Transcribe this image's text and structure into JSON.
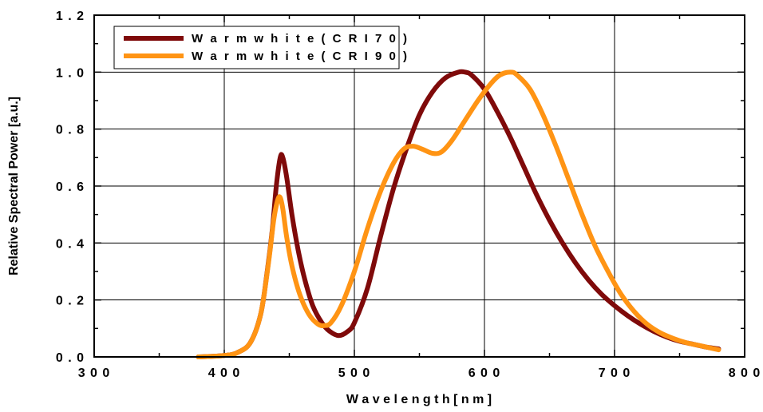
{
  "chart_data": {
    "type": "line",
    "xlabel": "W a v e l e n g t h   [ n m ]",
    "ylabel": "Relative Spectral Power [a.u.]",
    "xlim": [
      300,
      800
    ],
    "ylim": [
      0,
      1.2
    ],
    "x_ticks": [
      300,
      400,
      500,
      600,
      700,
      800
    ],
    "x_tick_labels": [
      "3 0 0",
      "4 0 0",
      "5 0 0",
      "6 0 0",
      "7 0 0",
      "8 0 0"
    ],
    "y_ticks": [
      0,
      0.2,
      0.4,
      0.6,
      0.8,
      1.0,
      1.2
    ],
    "y_tick_labels": [
      "0 . 0",
      "0 . 2",
      "0 . 4",
      "0 . 6",
      "0 . 8",
      "1 . 0",
      "1 . 2"
    ],
    "grid": true,
    "legend_position": "top-left",
    "series": [
      {
        "name": "W a r m  w h i t e  ( C R I  7 0 )",
        "color": "#7f0a0a",
        "points": [
          [
            380,
            0.0
          ],
          [
            400,
            0.005
          ],
          [
            410,
            0.015
          ],
          [
            420,
            0.05
          ],
          [
            428,
            0.15
          ],
          [
            433,
            0.3
          ],
          [
            437,
            0.45
          ],
          [
            440,
            0.6
          ],
          [
            443,
            0.7
          ],
          [
            445,
            0.7
          ],
          [
            448,
            0.63
          ],
          [
            452,
            0.5
          ],
          [
            457,
            0.37
          ],
          [
            462,
            0.27
          ],
          [
            468,
            0.18
          ],
          [
            475,
            0.12
          ],
          [
            481,
            0.09
          ],
          [
            488,
            0.075
          ],
          [
            495,
            0.09
          ],
          [
            500,
            0.12
          ],
          [
            510,
            0.24
          ],
          [
            520,
            0.42
          ],
          [
            530,
            0.59
          ],
          [
            540,
            0.73
          ],
          [
            550,
            0.85
          ],
          [
            560,
            0.93
          ],
          [
            570,
            0.98
          ],
          [
            580,
            1.0
          ],
          [
            585,
            1.0
          ],
          [
            590,
            0.99
          ],
          [
            600,
            0.94
          ],
          [
            610,
            0.86
          ],
          [
            620,
            0.77
          ],
          [
            630,
            0.67
          ],
          [
            640,
            0.57
          ],
          [
            650,
            0.48
          ],
          [
            660,
            0.4
          ],
          [
            670,
            0.33
          ],
          [
            680,
            0.27
          ],
          [
            690,
            0.22
          ],
          [
            700,
            0.18
          ],
          [
            710,
            0.145
          ],
          [
            720,
            0.115
          ],
          [
            730,
            0.09
          ],
          [
            740,
            0.07
          ],
          [
            750,
            0.055
          ],
          [
            760,
            0.045
          ],
          [
            770,
            0.035
          ],
          [
            780,
            0.028
          ]
        ]
      },
      {
        "name": "W a r m  w h i t e  ( C R I  9 0 )",
        "color": "#ff9414",
        "points": [
          [
            380,
            0.0
          ],
          [
            400,
            0.005
          ],
          [
            410,
            0.015
          ],
          [
            420,
            0.05
          ],
          [
            428,
            0.15
          ],
          [
            434,
            0.33
          ],
          [
            438,
            0.48
          ],
          [
            441,
            0.55
          ],
          [
            443,
            0.56
          ],
          [
            445,
            0.52
          ],
          [
            448,
            0.42
          ],
          [
            452,
            0.32
          ],
          [
            458,
            0.22
          ],
          [
            465,
            0.15
          ],
          [
            472,
            0.115
          ],
          [
            477,
            0.11
          ],
          [
            482,
            0.12
          ],
          [
            490,
            0.18
          ],
          [
            500,
            0.3
          ],
          [
            510,
            0.45
          ],
          [
            520,
            0.58
          ],
          [
            530,
            0.68
          ],
          [
            538,
            0.73
          ],
          [
            545,
            0.74
          ],
          [
            552,
            0.73
          ],
          [
            560,
            0.715
          ],
          [
            567,
            0.72
          ],
          [
            575,
            0.76
          ],
          [
            585,
            0.83
          ],
          [
            595,
            0.9
          ],
          [
            605,
            0.96
          ],
          [
            612,
            0.99
          ],
          [
            620,
            1.0
          ],
          [
            625,
            0.99
          ],
          [
            635,
            0.94
          ],
          [
            645,
            0.85
          ],
          [
            655,
            0.74
          ],
          [
            665,
            0.62
          ],
          [
            675,
            0.5
          ],
          [
            685,
            0.39
          ],
          [
            695,
            0.3
          ],
          [
            705,
            0.22
          ],
          [
            715,
            0.16
          ],
          [
            725,
            0.115
          ],
          [
            735,
            0.085
          ],
          [
            745,
            0.065
          ],
          [
            755,
            0.05
          ],
          [
            765,
            0.04
          ],
          [
            775,
            0.03
          ],
          [
            780,
            0.025
          ]
        ]
      }
    ]
  }
}
